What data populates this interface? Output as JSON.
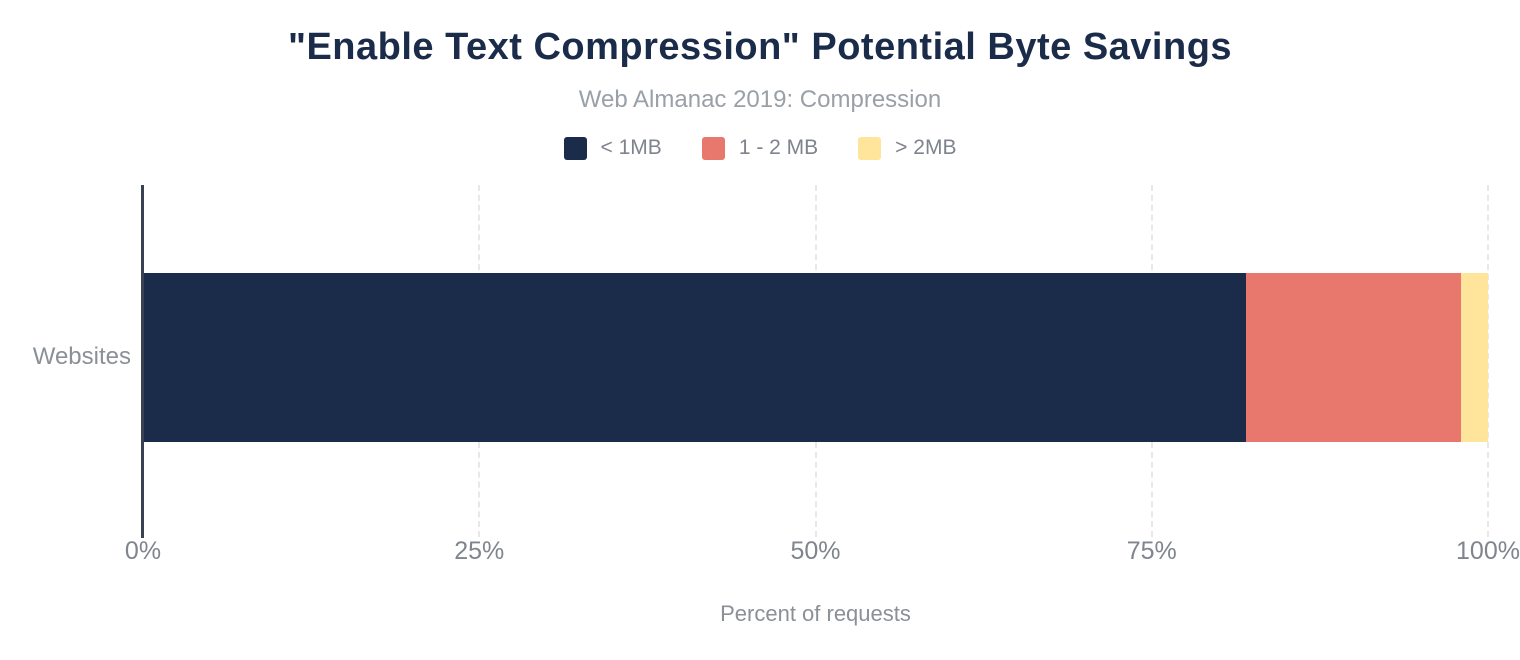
{
  "header": {
    "title": "\"Enable Text Compression\" Potential Byte Savings",
    "subtitle": "Web Almanac 2019: Compression"
  },
  "legend": [
    {
      "label": "< 1MB",
      "color": "#1b2b4a"
    },
    {
      "label": "1 - 2 MB",
      "color": "#e8786e"
    },
    {
      "label": "> 2MB",
      "color": "#ffe49b"
    }
  ],
  "axis": {
    "y_category": "Websites",
    "x_title": "Percent of requests"
  },
  "chart_data": {
    "type": "bar",
    "orientation": "horizontal",
    "stacked": true,
    "title": "\"Enable Text Compression\" Potential Byte Savings",
    "subtitle": "Web Almanac 2019: Compression",
    "categories": [
      "Websites"
    ],
    "series": [
      {
        "name": "< 1MB",
        "values": [
          82.0
        ],
        "color": "#1b2b4a"
      },
      {
        "name": "1 - 2 MB",
        "values": [
          16.0
        ],
        "color": "#e8786e"
      },
      {
        "name": "> 2MB",
        "values": [
          2.0
        ],
        "color": "#ffe49b"
      }
    ],
    "xlabel": "Percent of requests",
    "ylabel": "",
    "xlim": [
      0,
      100
    ],
    "xticks": [
      {
        "value": 0,
        "label": "0%"
      },
      {
        "value": 25,
        "label": "25%"
      },
      {
        "value": 50,
        "label": "50%"
      },
      {
        "value": 75,
        "label": "75%"
      },
      {
        "value": 100,
        "label": "100%"
      }
    ],
    "grid": "dashed-vertical",
    "legend_position": "top",
    "colors": {
      "title_text": "#1b2b4a",
      "subtitle_text": "#9aa0a7",
      "tick_text": "#7f848d",
      "axis_line": "#3a4150",
      "gridline": "#e8e8e8"
    }
  }
}
